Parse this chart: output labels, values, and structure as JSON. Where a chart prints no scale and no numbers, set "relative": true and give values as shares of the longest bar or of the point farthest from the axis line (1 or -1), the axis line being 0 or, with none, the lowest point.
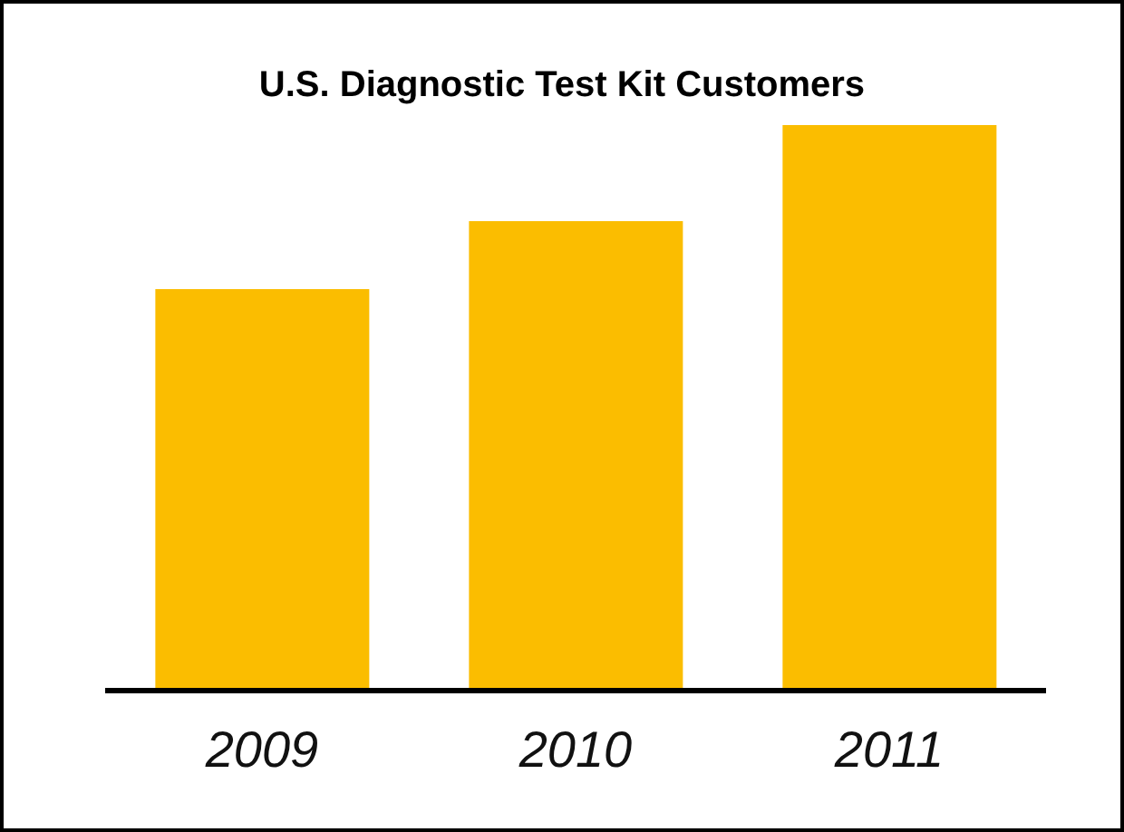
{
  "chart_data": {
    "type": "bar",
    "title": "U.S. Diagnostic Test Kit Customers",
    "categories": [
      "2009",
      "2010",
      "2011"
    ],
    "values": [
      0.71,
      0.83,
      1
    ],
    "color": "#fbbd00",
    "relative": true,
    "grid": false,
    "legend": false
  }
}
